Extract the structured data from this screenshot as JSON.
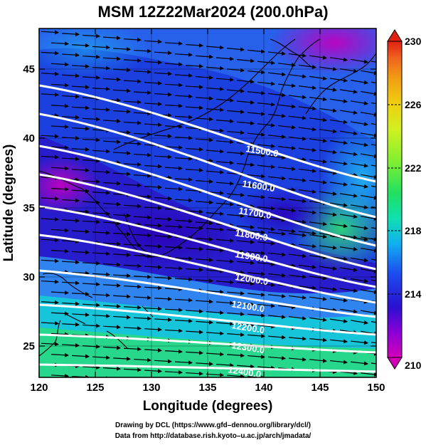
{
  "title": "MSM 12Z22Mar2024 (200.0hPa)",
  "xaxis": {
    "label": "Longitude (degrees)",
    "range": [
      120,
      150
    ],
    "ticks": [
      "120",
      "125",
      "130",
      "135",
      "140",
      "145",
      "150"
    ]
  },
  "yaxis": {
    "label": "Latitude  (degrees)",
    "range": [
      22.4,
      47.6
    ],
    "ticks": [
      "25",
      "30",
      "35",
      "40",
      "45"
    ]
  },
  "colorbar": {
    "range": [
      210,
      230
    ],
    "ticks": [
      "210",
      "214",
      "218",
      "222",
      "226",
      "230"
    ],
    "colors": [
      "#d400b8",
      "#7a00d9",
      "#1a10d0",
      "#2060f0",
      "#10b0f0",
      "#10e0b0",
      "#20e060",
      "#70f030",
      "#c0f020",
      "#f0e010",
      "#f0a010",
      "#f06020",
      "#e02010"
    ]
  },
  "contours": [
    {
      "label": "11500.0"
    },
    {
      "label": "11600.0"
    },
    {
      "label": "11700.0"
    },
    {
      "label": "11800.0"
    },
    {
      "label": "11900.0"
    },
    {
      "label": "12000.0"
    },
    {
      "label": "12100.0"
    },
    {
      "label": "12200.0"
    },
    {
      "label": "12300.0"
    },
    {
      "label": "12400.0"
    }
  ],
  "footer": {
    "line1": "Drawing by DCL (https://www.gfd–dennou.org/library/dcl/)",
    "line2": "Data from http://database.rish.kyoto–u.ac.jp/arch/jmadata/"
  }
}
